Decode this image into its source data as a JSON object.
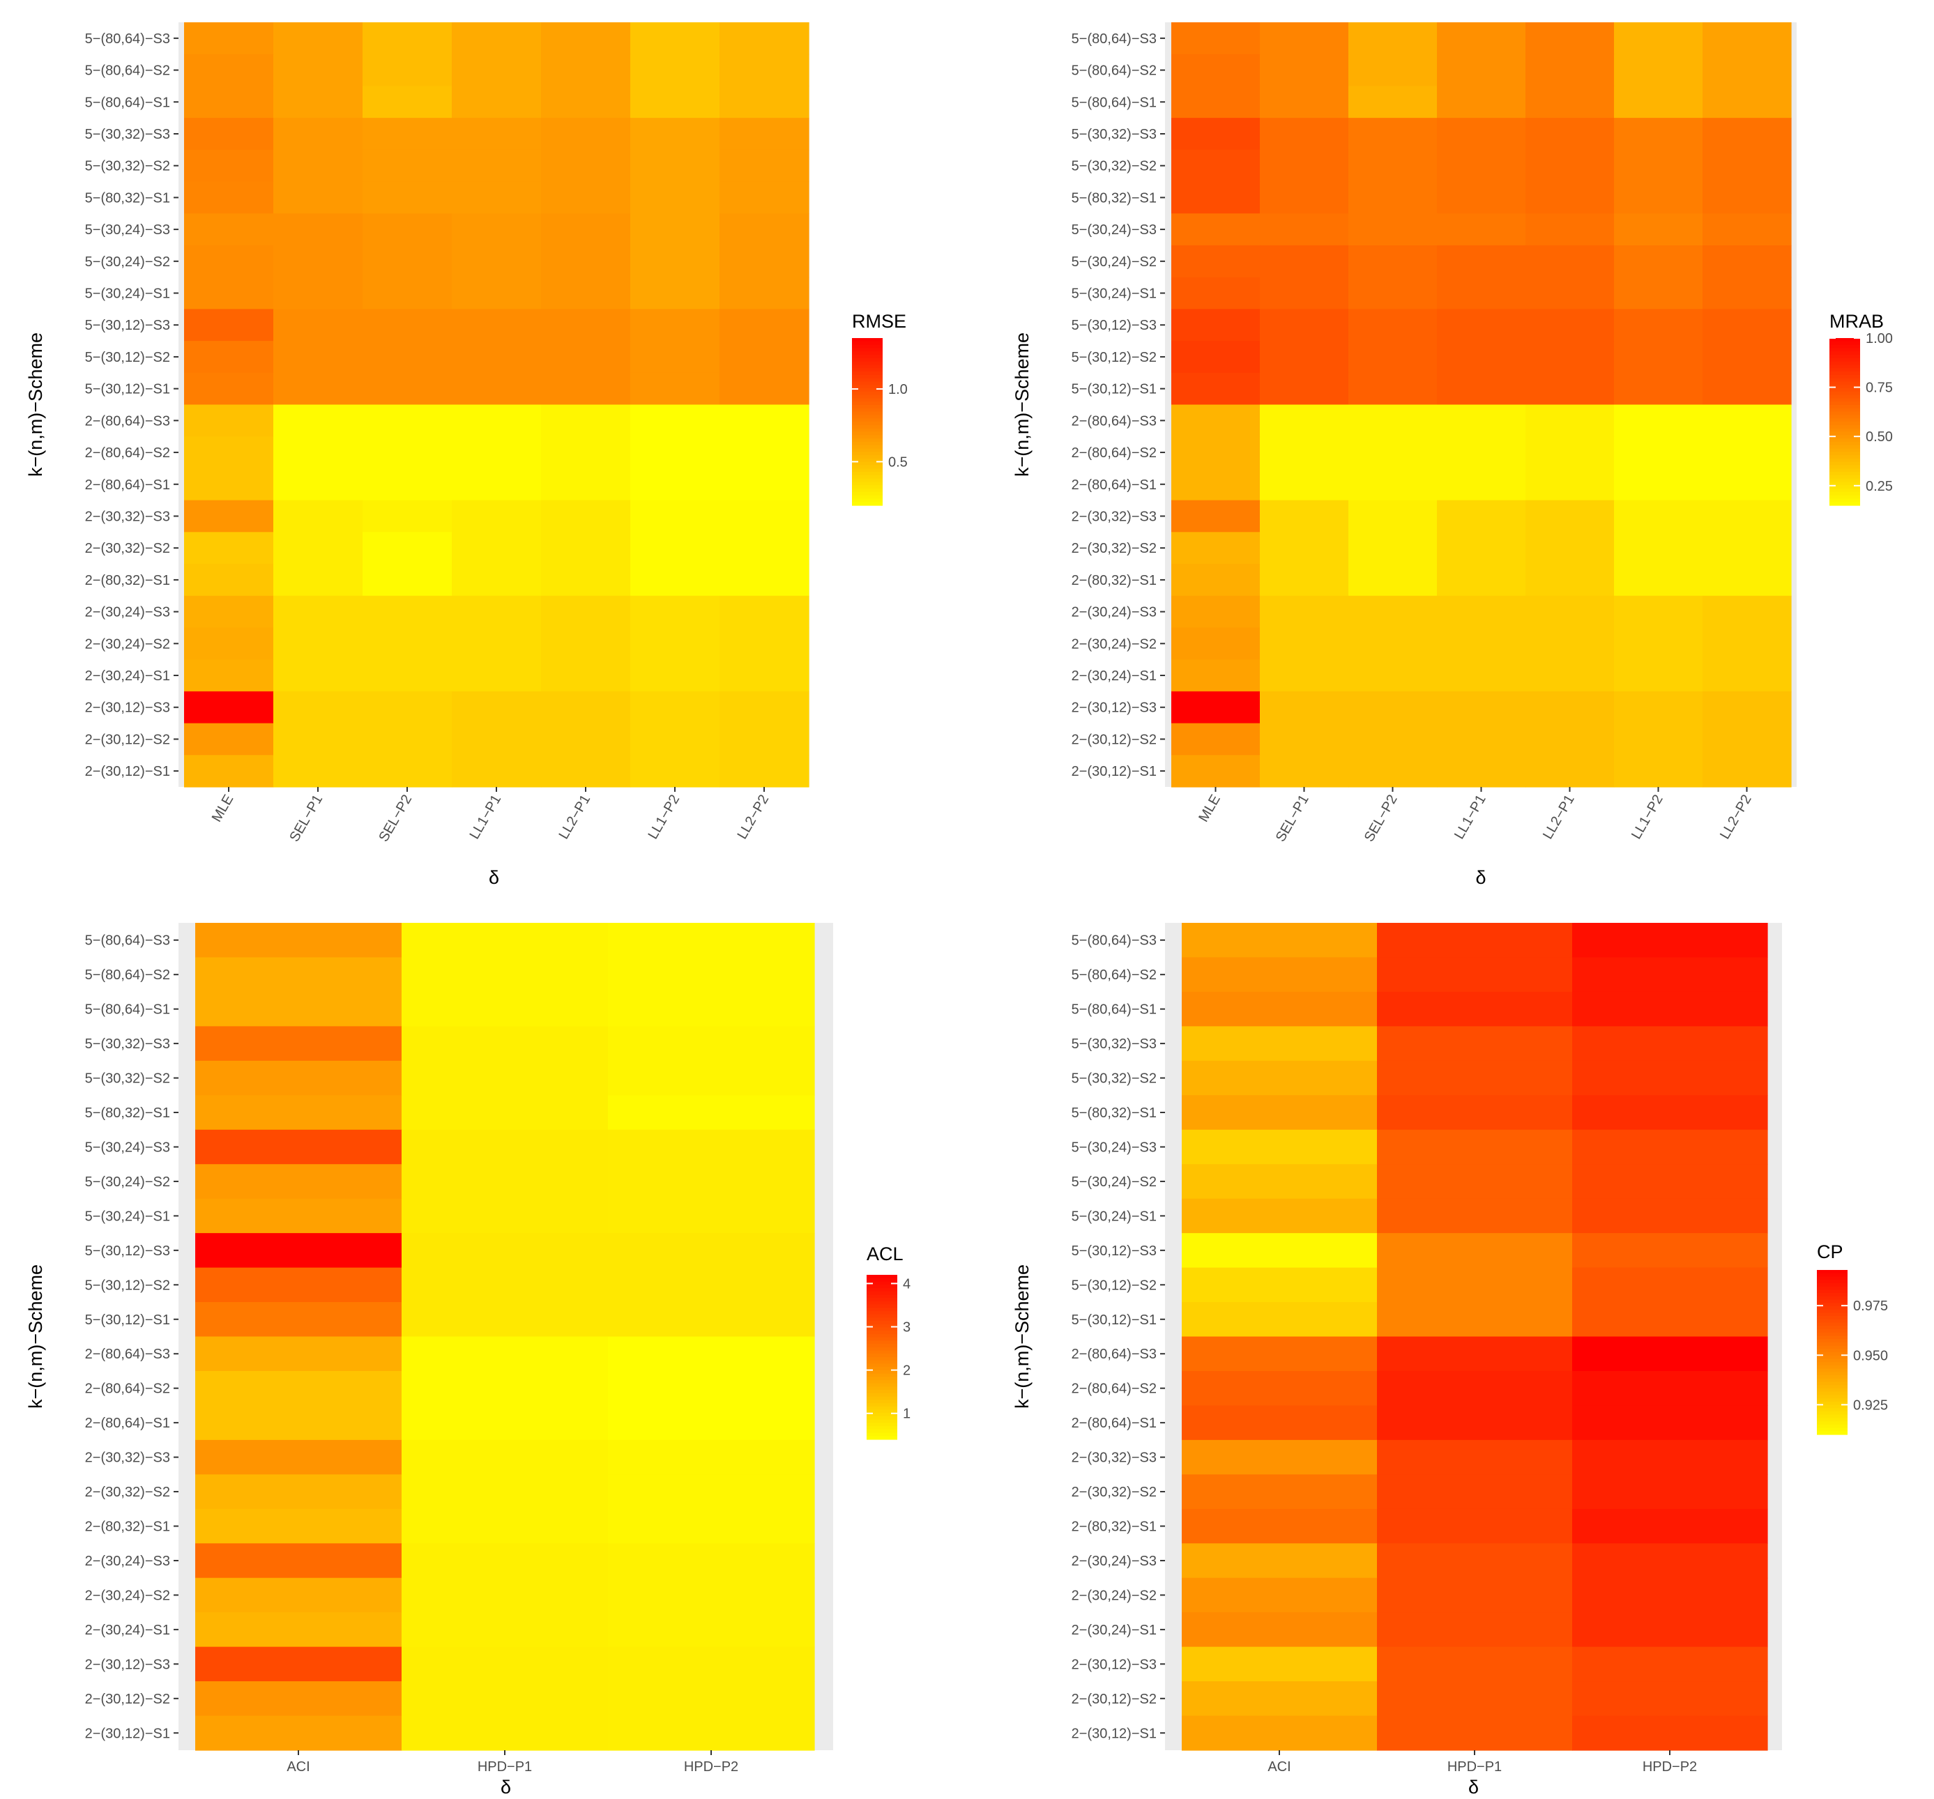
{
  "chart_data": [
    {
      "type": "heatmap",
      "name": "RMSE",
      "xlabel": "δ",
      "ylabel": "k−(n,m)−Scheme",
      "legend_title": "RMSE",
      "legend_range": [
        0.2,
        1.35
      ],
      "legend_breaks": [
        0.5,
        1.0
      ],
      "legend_break_labels": [
        "0.5",
        "1.0"
      ],
      "x_categories": [
        "MLE",
        "SEL−P1",
        "SEL−P2",
        "LL1−P1",
        "LL2−P1",
        "LL1−P2",
        "LL2−P2"
      ],
      "y_categories": [
        "5−(80,64)−S3",
        "5−(80,64)−S2",
        "5−(80,64)−S1",
        "5−(30,32)−S3",
        "5−(30,32)−S2",
        "5−(80,32)−S1",
        "5−(30,24)−S3",
        "5−(30,24)−S2",
        "5−(30,24)−S1",
        "5−(30,12)−S3",
        "5−(30,12)−S2",
        "5−(30,12)−S1",
        "2−(80,64)−S3",
        "2−(80,64)−S2",
        "2−(80,64)−S1",
        "2−(30,32)−S3",
        "2−(30,32)−S2",
        "2−(80,32)−S1",
        "2−(30,24)−S3",
        "2−(30,24)−S2",
        "2−(30,24)−S1",
        "2−(30,12)−S3",
        "2−(30,12)−S2",
        "2−(30,12)−S1"
      ],
      "values": [
        [
          0.68,
          0.62,
          0.5,
          0.58,
          0.62,
          0.46,
          0.52
        ],
        [
          0.7,
          0.62,
          0.5,
          0.58,
          0.62,
          0.46,
          0.52
        ],
        [
          0.7,
          0.62,
          0.48,
          0.58,
          0.62,
          0.46,
          0.52
        ],
        [
          0.78,
          0.66,
          0.64,
          0.64,
          0.66,
          0.6,
          0.64
        ],
        [
          0.76,
          0.66,
          0.64,
          0.64,
          0.66,
          0.6,
          0.64
        ],
        [
          0.75,
          0.66,
          0.64,
          0.64,
          0.66,
          0.6,
          0.64
        ],
        [
          0.7,
          0.7,
          0.68,
          0.66,
          0.68,
          0.6,
          0.66
        ],
        [
          0.72,
          0.7,
          0.68,
          0.66,
          0.68,
          0.6,
          0.66
        ],
        [
          0.72,
          0.7,
          0.68,
          0.66,
          0.68,
          0.6,
          0.66
        ],
        [
          0.9,
          0.72,
          0.72,
          0.72,
          0.72,
          0.68,
          0.72
        ],
        [
          0.8,
          0.72,
          0.72,
          0.72,
          0.72,
          0.68,
          0.72
        ],
        [
          0.78,
          0.72,
          0.72,
          0.72,
          0.72,
          0.68,
          0.72
        ],
        [
          0.48,
          0.22,
          0.22,
          0.22,
          0.24,
          0.2,
          0.2
        ],
        [
          0.46,
          0.22,
          0.22,
          0.22,
          0.24,
          0.2,
          0.2
        ],
        [
          0.46,
          0.22,
          0.22,
          0.22,
          0.24,
          0.2,
          0.2
        ],
        [
          0.68,
          0.28,
          0.26,
          0.28,
          0.3,
          0.22,
          0.22
        ],
        [
          0.44,
          0.28,
          0.22,
          0.28,
          0.3,
          0.22,
          0.22
        ],
        [
          0.46,
          0.28,
          0.22,
          0.28,
          0.3,
          0.22,
          0.22
        ],
        [
          0.56,
          0.36,
          0.36,
          0.36,
          0.38,
          0.34,
          0.36
        ],
        [
          0.58,
          0.36,
          0.36,
          0.36,
          0.38,
          0.34,
          0.36
        ],
        [
          0.56,
          0.36,
          0.36,
          0.36,
          0.38,
          0.34,
          0.36
        ],
        [
          1.35,
          0.4,
          0.4,
          0.42,
          0.42,
          0.38,
          0.4
        ],
        [
          0.66,
          0.4,
          0.4,
          0.42,
          0.42,
          0.38,
          0.4
        ],
        [
          0.54,
          0.4,
          0.4,
          0.42,
          0.42,
          0.38,
          0.4
        ]
      ]
    },
    {
      "type": "heatmap",
      "name": "MRAB",
      "xlabel": "δ",
      "ylabel": "k−(n,m)−Scheme",
      "legend_title": "MRAB",
      "legend_range": [
        0.15,
        1.0
      ],
      "legend_breaks": [
        0.25,
        0.5,
        0.75,
        1.0
      ],
      "legend_break_labels": [
        "0.25",
        "0.50",
        "0.75",
        "1.00"
      ],
      "x_categories": [
        "MLE",
        "SEL−P1",
        "SEL−P2",
        "LL1−P1",
        "LL2−P1",
        "LL1−P2",
        "LL2−P2"
      ],
      "y_categories": [
        "5−(80,64)−S3",
        "5−(80,64)−S2",
        "5−(80,64)−S1",
        "5−(30,32)−S3",
        "5−(30,32)−S2",
        "5−(80,32)−S1",
        "5−(30,24)−S3",
        "5−(30,24)−S2",
        "5−(30,24)−S1",
        "5−(30,12)−S3",
        "5−(30,12)−S2",
        "5−(30,12)−S1",
        "2−(80,64)−S3",
        "2−(80,64)−S2",
        "2−(80,64)−S1",
        "2−(30,32)−S3",
        "2−(30,32)−S2",
        "2−(80,32)−S1",
        "2−(30,24)−S3",
        "2−(30,24)−S2",
        "2−(30,24)−S1",
        "2−(30,12)−S3",
        "2−(30,12)−S2",
        "2−(30,12)−S1"
      ],
      "values": [
        [
          0.6,
          0.56,
          0.42,
          0.52,
          0.58,
          0.4,
          0.46
        ],
        [
          0.62,
          0.56,
          0.42,
          0.52,
          0.58,
          0.4,
          0.46
        ],
        [
          0.62,
          0.56,
          0.4,
          0.52,
          0.58,
          0.4,
          0.46
        ],
        [
          0.76,
          0.64,
          0.6,
          0.62,
          0.64,
          0.58,
          0.62
        ],
        [
          0.74,
          0.64,
          0.6,
          0.62,
          0.64,
          0.58,
          0.62
        ],
        [
          0.74,
          0.64,
          0.6,
          0.62,
          0.64,
          0.58,
          0.62
        ],
        [
          0.62,
          0.62,
          0.6,
          0.6,
          0.62,
          0.56,
          0.6
        ],
        [
          0.68,
          0.68,
          0.64,
          0.66,
          0.66,
          0.6,
          0.64
        ],
        [
          0.7,
          0.68,
          0.64,
          0.66,
          0.66,
          0.6,
          0.64
        ],
        [
          0.78,
          0.72,
          0.68,
          0.7,
          0.7,
          0.66,
          0.68
        ],
        [
          0.8,
          0.72,
          0.68,
          0.7,
          0.7,
          0.66,
          0.68
        ],
        [
          0.78,
          0.72,
          0.68,
          0.7,
          0.7,
          0.66,
          0.68
        ],
        [
          0.4,
          0.18,
          0.18,
          0.18,
          0.2,
          0.16,
          0.16
        ],
        [
          0.4,
          0.18,
          0.18,
          0.18,
          0.2,
          0.16,
          0.16
        ],
        [
          0.4,
          0.18,
          0.18,
          0.18,
          0.2,
          0.16,
          0.16
        ],
        [
          0.58,
          0.28,
          0.2,
          0.28,
          0.3,
          0.2,
          0.2
        ],
        [
          0.4,
          0.28,
          0.2,
          0.28,
          0.3,
          0.2,
          0.2
        ],
        [
          0.42,
          0.28,
          0.2,
          0.28,
          0.3,
          0.2,
          0.2
        ],
        [
          0.46,
          0.32,
          0.32,
          0.32,
          0.32,
          0.3,
          0.32
        ],
        [
          0.48,
          0.32,
          0.32,
          0.32,
          0.32,
          0.3,
          0.32
        ],
        [
          0.46,
          0.32,
          0.32,
          0.32,
          0.32,
          0.3,
          0.32
        ],
        [
          1.0,
          0.36,
          0.36,
          0.36,
          0.36,
          0.34,
          0.36
        ],
        [
          0.52,
          0.36,
          0.36,
          0.36,
          0.36,
          0.34,
          0.36
        ],
        [
          0.46,
          0.36,
          0.36,
          0.36,
          0.36,
          0.34,
          0.36
        ]
      ]
    },
    {
      "type": "heatmap",
      "name": "ACL",
      "xlabel": "δ",
      "ylabel": "k−(n,m)−Scheme",
      "legend_title": "ACL",
      "legend_range": [
        0.4,
        4.2
      ],
      "legend_breaks": [
        1,
        2,
        3,
        4
      ],
      "legend_break_labels": [
        "1",
        "2",
        "3",
        "4"
      ],
      "x_categories": [
        "ACI",
        "HPD−P1",
        "HPD−P2"
      ],
      "y_categories": [
        "5−(80,64)−S3",
        "5−(80,64)−S2",
        "5−(80,64)−S1",
        "5−(30,32)−S3",
        "5−(30,32)−S2",
        "5−(80,32)−S1",
        "5−(30,24)−S3",
        "5−(30,24)−S2",
        "5−(30,24)−S1",
        "5−(30,12)−S3",
        "5−(30,12)−S2",
        "5−(30,12)−S1",
        "2−(80,64)−S3",
        "2−(80,64)−S2",
        "2−(80,64)−S1",
        "2−(30,32)−S3",
        "2−(30,32)−S2",
        "2−(80,32)−S1",
        "2−(30,24)−S3",
        "2−(30,24)−S2",
        "2−(30,24)−S1",
        "2−(30,12)−S3",
        "2−(30,12)−S2",
        "2−(30,12)−S1"
      ],
      "values": [
        [
          1.9,
          0.55,
          0.5
        ],
        [
          1.6,
          0.55,
          0.5
        ],
        [
          1.6,
          0.55,
          0.5
        ],
        [
          2.5,
          0.62,
          0.55
        ],
        [
          1.9,
          0.62,
          0.55
        ],
        [
          1.8,
          0.62,
          0.48
        ],
        [
          3.1,
          0.7,
          0.68
        ],
        [
          1.9,
          0.7,
          0.68
        ],
        [
          1.8,
          0.7,
          0.68
        ],
        [
          4.2,
          0.75,
          0.75
        ],
        [
          2.7,
          0.75,
          0.75
        ],
        [
          2.4,
          0.75,
          0.75
        ],
        [
          1.6,
          0.48,
          0.42
        ],
        [
          1.3,
          0.48,
          0.42
        ],
        [
          1.3,
          0.48,
          0.42
        ],
        [
          2.0,
          0.56,
          0.52
        ],
        [
          1.5,
          0.56,
          0.52
        ],
        [
          1.4,
          0.56,
          0.52
        ],
        [
          2.6,
          0.62,
          0.6
        ],
        [
          1.6,
          0.62,
          0.6
        ],
        [
          1.5,
          0.62,
          0.6
        ],
        [
          3.1,
          0.66,
          0.64
        ],
        [
          2.0,
          0.66,
          0.64
        ],
        [
          1.8,
          0.66,
          0.64
        ]
      ]
    },
    {
      "type": "heatmap",
      "name": "CP",
      "xlabel": "δ",
      "ylabel": "k−(n,m)−Scheme",
      "legend_title": "CP",
      "legend_range": [
        0.91,
        0.993
      ],
      "legend_breaks": [
        0.925,
        0.95,
        0.975
      ],
      "legend_break_labels": [
        "0.925",
        "0.950",
        "0.975"
      ],
      "x_categories": [
        "ACI",
        "HPD−P1",
        "HPD−P2"
      ],
      "y_categories": [
        "5−(80,64)−S3",
        "5−(80,64)−S2",
        "5−(80,64)−S1",
        "5−(30,32)−S3",
        "5−(30,32)−S2",
        "5−(80,32)−S1",
        "5−(30,24)−S3",
        "5−(30,24)−S2",
        "5−(30,24)−S1",
        "5−(30,12)−S3",
        "5−(30,12)−S2",
        "5−(30,12)−S1",
        "2−(80,64)−S3",
        "2−(80,64)−S2",
        "2−(80,64)−S1",
        "2−(30,32)−S3",
        "2−(30,32)−S2",
        "2−(80,32)−S1",
        "2−(30,24)−S3",
        "2−(30,24)−S2",
        "2−(30,24)−S1",
        "2−(30,12)−S3",
        "2−(30,12)−S2",
        "2−(30,12)−S1"
      ],
      "values": [
        [
          0.94,
          0.975,
          0.988
        ],
        [
          0.945,
          0.975,
          0.985
        ],
        [
          0.948,
          0.978,
          0.985
        ],
        [
          0.93,
          0.968,
          0.975
        ],
        [
          0.935,
          0.968,
          0.975
        ],
        [
          0.94,
          0.97,
          0.978
        ],
        [
          0.925,
          0.962,
          0.97
        ],
        [
          0.93,
          0.962,
          0.97
        ],
        [
          0.935,
          0.962,
          0.97
        ],
        [
          0.912,
          0.95,
          0.962
        ],
        [
          0.922,
          0.95,
          0.965
        ],
        [
          0.925,
          0.95,
          0.965
        ],
        [
          0.958,
          0.98,
          0.993
        ],
        [
          0.962,
          0.982,
          0.988
        ],
        [
          0.965,
          0.982,
          0.988
        ],
        [
          0.945,
          0.972,
          0.982
        ],
        [
          0.955,
          0.972,
          0.982
        ],
        [
          0.958,
          0.972,
          0.985
        ],
        [
          0.938,
          0.968,
          0.978
        ],
        [
          0.945,
          0.968,
          0.978
        ],
        [
          0.948,
          0.968,
          0.978
        ],
        [
          0.928,
          0.965,
          0.97
        ],
        [
          0.935,
          0.965,
          0.97
        ],
        [
          0.94,
          0.965,
          0.972
        ]
      ]
    }
  ]
}
